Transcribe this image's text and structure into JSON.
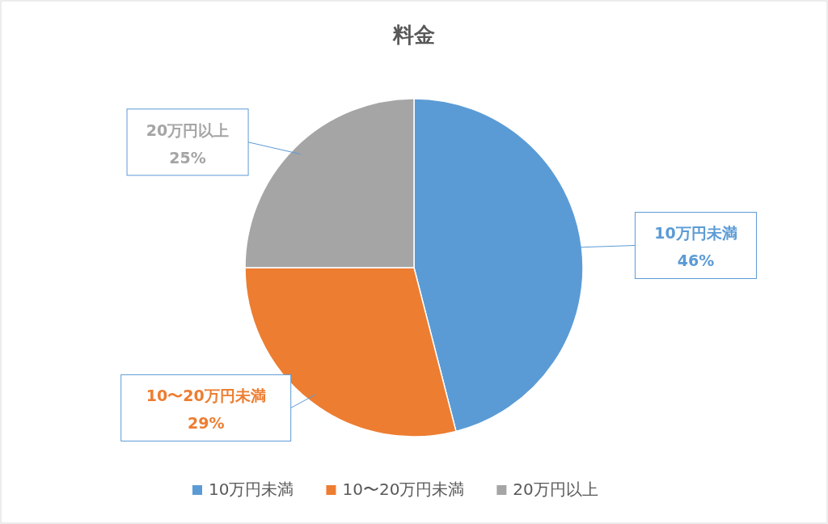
{
  "chart_data": {
    "type": "pie",
    "title": "料金",
    "categories": [
      "10万円未満",
      "10〜20万円未満",
      "20万円以上"
    ],
    "values": [
      46,
      29,
      25
    ],
    "colors": [
      "#5b9bd5",
      "#ed7d31",
      "#a5a5a5"
    ],
    "value_labels": [
      "46%",
      "29%",
      "25%"
    ],
    "legend": "bottom"
  }
}
